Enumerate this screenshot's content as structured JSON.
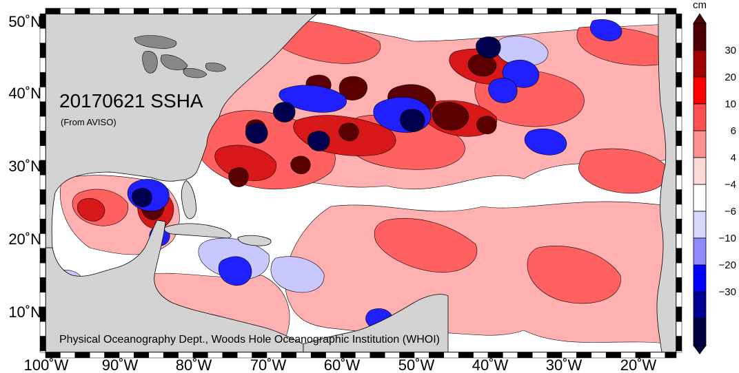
{
  "map": {
    "title": "20170621 SSHA",
    "subtitle": "(From AVISO)",
    "credit": "Physical Oceanography Dept., Woods Hole Oceanographic Institution (WHOI)",
    "lat_labels": [
      "50˚N",
      "40˚N",
      "30˚N",
      "20˚N",
      "10˚N"
    ],
    "lon_labels": [
      "100˚W",
      "90˚W",
      "80˚W",
      "70˚W",
      "60˚W",
      "50˚W",
      "40˚W",
      "30˚W",
      "20˚W"
    ],
    "lat_range": [
      5,
      50
    ],
    "lon_range": [
      -100,
      -15
    ]
  },
  "colorbar": {
    "unit": "cm",
    "tick_labels": [
      "30",
      "20",
      "10",
      "6",
      "4",
      "−4",
      "−6",
      "−10",
      "−20",
      "−30"
    ],
    "colors": [
      "#4a0000",
      "#a00000",
      "#ff0000",
      "#ff5050",
      "#ff9090",
      "#ffd8d8",
      "#ffffff",
      "#d8d8ff",
      "#8c8cff",
      "#0000ff",
      "#000090",
      "#000040"
    ]
  },
  "colors": {
    "land": "#d3d3d3",
    "lakes": "#888888",
    "ocean_base": "#ffffff",
    "pos_weak": "#ffb0b0",
    "pos_mid": "#ff6060",
    "pos_strong": "#d81818",
    "pos_max": "#5a0000",
    "neg_weak": "#c8c8ff",
    "neg_mid": "#2020ff",
    "neg_max": "#000050"
  }
}
